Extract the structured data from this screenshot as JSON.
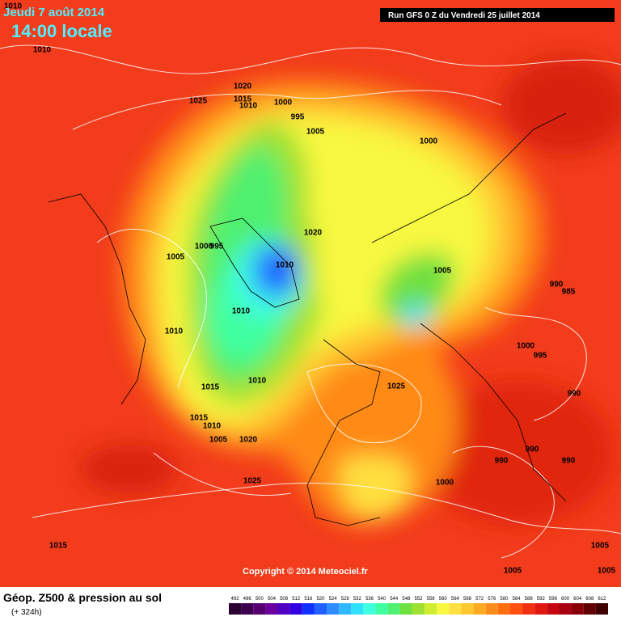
{
  "header": {
    "date": "Jeudi 7 août 2014",
    "time": "14:00 locale",
    "run": "Run GFS 0 Z du Vendredi 25 juillet 2014"
  },
  "pressure_labels": [
    1010,
    1010,
    1020,
    1015,
    1010,
    1025,
    1000,
    995,
    1005,
    1000,
    1020,
    1005,
    1000,
    995,
    1010,
    1005,
    990,
    985,
    1010,
    1010,
    1000,
    995,
    1025,
    1010,
    1015,
    990,
    1015,
    1010,
    1005,
    1020,
    990,
    990,
    990,
    1025,
    1000,
    1015,
    1005,
    1005,
    1005
  ],
  "footer": {
    "copyright": "Copyright © 2014 Meteociel.fr",
    "title": "Géop. Z500 & pression au sol",
    "lead": "(+ 324h)"
  },
  "legend": {
    "values": [
      492,
      496,
      500,
      504,
      508,
      512,
      516,
      520,
      524,
      528,
      532,
      536,
      540,
      544,
      548,
      552,
      556,
      560,
      564,
      568,
      572,
      576,
      580,
      584,
      588,
      592,
      596,
      600,
      604,
      608,
      612
    ],
    "colors": [
      "#2a0030",
      "#3d0050",
      "#560070",
      "#6a00a0",
      "#5000c0",
      "#3000e0",
      "#1030ff",
      "#2060ff",
      "#2f8cff",
      "#30b8ff",
      "#30e0ff",
      "#40ffe0",
      "#40ffa0",
      "#50f070",
      "#70e040",
      "#a0e030",
      "#d0ee30",
      "#f8f840",
      "#ffe040",
      "#ffc830",
      "#ffaa20",
      "#ff8c18",
      "#ff6e10",
      "#ff5010",
      "#f03010",
      "#e01810",
      "#c80810",
      "#a80010",
      "#880008",
      "#600000",
      "#400000"
    ]
  }
}
